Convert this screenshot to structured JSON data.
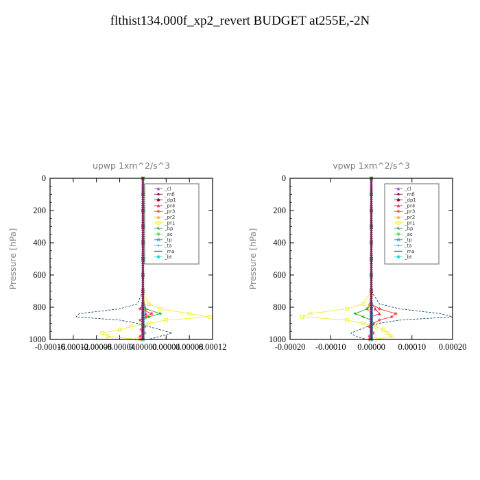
{
  "title": "flthist134.000f_xp2_revert  BUDGET at255E,-2N",
  "colors": {
    "_cl": "#9955cc",
    "_mfl": "#7a1f5c",
    "_dp1": "#8b1a4a",
    "_pr4": "#dd3355",
    "_pr3": "#ff3333",
    "_pr2": "#ffaa22",
    "_pr1": "#eeee22",
    "_bp": "#22aa22",
    "_ac": "#66dd66",
    "_tp": "#2277bb",
    "_ta": "#3399dd",
    "_ma": "#114466",
    "_bt": "#22dddd"
  },
  "chart_data": [
    {
      "type": "line",
      "title": "upwp   1xm^2/s^3",
      "ylabel": "Pressure [hPa]",
      "xlim": [
        -0.00016,
        0.00012
      ],
      "ylim": [
        1000,
        0
      ],
      "xticks": [
        "-0.00016",
        "-0.00012",
        "-0.00008",
        "-0.00004",
        "0.00000",
        "0.00004",
        "0.00008",
        "0.00012"
      ],
      "yticks": [
        "0",
        "200",
        "400",
        "600",
        "800",
        "1000"
      ],
      "legend_loc": "upper-right",
      "pressure": [
        0,
        100,
        200,
        300,
        400,
        500,
        600,
        700,
        780,
        810,
        840,
        860,
        880,
        900,
        920,
        940,
        960,
        980,
        1000
      ],
      "series": [
        {
          "name": "_cl",
          "values": [
            0,
            0,
            0,
            0,
            0,
            0,
            0,
            0,
            0,
            0,
            0,
            0,
            0,
            0,
            0,
            0,
            0,
            0,
            0
          ]
        },
        {
          "name": "_mfl",
          "values": [
            0,
            0,
            0,
            0,
            0,
            0,
            0,
            0,
            0,
            0,
            0,
            0,
            0,
            0,
            0,
            0,
            0,
            0,
            0
          ]
        },
        {
          "name": "_dp1",
          "values": [
            0,
            0,
            0,
            0,
            0,
            0,
            0,
            0,
            0,
            0,
            0,
            0,
            0,
            0,
            0,
            0,
            0,
            0,
            0
          ]
        },
        {
          "name": "_pr4",
          "values": [
            0,
            0,
            0,
            0,
            0,
            0,
            0,
            0,
            0,
            5e-06,
            5e-06,
            0,
            0,
            0,
            0,
            0,
            0,
            0,
            0
          ]
        },
        {
          "name": "_pr3",
          "values": [
            0,
            0,
            0,
            0,
            0,
            0,
            0,
            0,
            0,
            -5e-06,
            1.5e-05,
            5e-06,
            -5e-06,
            0,
            3e-06,
            -3e-06,
            3e-06,
            -5e-06,
            -5e-06
          ]
        },
        {
          "name": "_pr2",
          "values": [
            0,
            0,
            0,
            0,
            0,
            0,
            0,
            0,
            3e-06,
            5e-06,
            0,
            0,
            0,
            0,
            0,
            0,
            0,
            0,
            0
          ]
        },
        {
          "name": "_pr1",
          "values": [
            0,
            0,
            0,
            0,
            0,
            0,
            0,
            0,
            1e-05,
            3e-05,
            8e-05,
            0.000115,
            4e-05,
            1e-05,
            -2e-05,
            -4e-05,
            -7e-05,
            -6e-05,
            -1e-05
          ]
        },
        {
          "name": "_bp",
          "values": [
            0,
            0,
            0,
            0,
            0,
            0,
            0,
            0,
            0,
            5e-06,
            3e-05,
            1e-05,
            0,
            0,
            0,
            0,
            0,
            0,
            0
          ]
        },
        {
          "name": "_ac",
          "values": [
            0,
            0,
            0,
            0,
            0,
            0,
            0,
            0,
            0,
            0,
            0,
            0,
            0,
            0,
            0,
            0,
            0,
            0,
            0
          ]
        },
        {
          "name": "_tp",
          "values": [
            0,
            0,
            0,
            0,
            0,
            0,
            0,
            0,
            0,
            0,
            0,
            0,
            0,
            0,
            0,
            0,
            0,
            0,
            0
          ]
        },
        {
          "name": "_ta",
          "values": [
            0,
            0,
            0,
            0,
            0,
            0,
            0,
            0,
            0,
            0,
            0,
            0,
            0,
            0,
            0,
            0,
            0,
            0,
            0
          ]
        },
        {
          "name": "_ma",
          "values": [
            0,
            0,
            0,
            0,
            0,
            0,
            0,
            0,
            -1e-05,
            -4e-05,
            -0.00011,
            -0.000115,
            -4e-05,
            -1e-05,
            1e-05,
            3e-05,
            5e-05,
            3e-05,
            1e-05
          ]
        },
        {
          "name": "_bt",
          "values": [
            0,
            0,
            0,
            0,
            0,
            0,
            0,
            0,
            0,
            0,
            0,
            0,
            0,
            0,
            0,
            0,
            0,
            0,
            0
          ]
        }
      ]
    },
    {
      "type": "line",
      "title": "vpwp   1xm^2/s^3",
      "ylabel": "Pressure [hPa]",
      "xlim": [
        -0.0002,
        0.0002
      ],
      "ylim": [
        1000,
        0
      ],
      "xticks": [
        "-0.00020",
        "-0.00010",
        "0.00000",
        "0.00010",
        "0.00020"
      ],
      "yticks": [
        "0",
        "200",
        "400",
        "600",
        "800",
        "1000"
      ],
      "legend_loc": "upper-right",
      "pressure": [
        0,
        100,
        200,
        300,
        400,
        500,
        600,
        700,
        780,
        810,
        840,
        860,
        880,
        900,
        920,
        940,
        960,
        980,
        1000
      ],
      "series": [
        {
          "name": "_cl",
          "values": [
            0,
            0,
            0,
            0,
            0,
            0,
            0,
            0,
            0,
            0,
            0,
            0,
            0,
            0,
            0,
            0,
            0,
            0,
            0
          ]
        },
        {
          "name": "_mfl",
          "values": [
            0,
            0,
            0,
            0,
            0,
            0,
            0,
            0,
            0,
            0,
            0,
            0,
            0,
            0,
            0,
            0,
            0,
            0,
            0
          ]
        },
        {
          "name": "_dp1",
          "values": [
            0,
            0,
            0,
            0,
            0,
            0,
            0,
            0,
            0,
            0,
            0,
            0,
            0,
            0,
            0,
            0,
            0,
            0,
            0
          ]
        },
        {
          "name": "_pr4",
          "values": [
            0,
            0,
            0,
            0,
            0,
            0,
            0,
            0,
            0,
            1e-05,
            2e-05,
            0,
            0,
            0,
            0,
            0,
            0,
            0,
            0
          ]
        },
        {
          "name": "_pr3",
          "values": [
            0,
            0,
            0,
            0,
            0,
            0,
            0,
            0,
            0,
            2e-05,
            6e-05,
            5e-05,
            2e-05,
            5e-06,
            -5e-06,
            0,
            5e-06,
            -5e-06,
            -5e-06
          ]
        },
        {
          "name": "_pr2",
          "values": [
            0,
            0,
            0,
            0,
            0,
            0,
            0,
            0,
            -5e-06,
            -1e-05,
            0,
            0,
            0,
            0,
            0,
            0,
            0,
            0,
            0
          ]
        },
        {
          "name": "_pr1",
          "values": [
            0,
            0,
            0,
            0,
            0,
            0,
            0,
            0,
            -2e-05,
            -6e-05,
            -0.00015,
            -0.00017,
            -6e-05,
            -2e-05,
            1e-05,
            3e-05,
            4e-05,
            5e-05,
            1e-05
          ]
        },
        {
          "name": "_bp",
          "values": [
            0,
            0,
            0,
            0,
            0,
            0,
            0,
            0,
            0,
            -1e-05,
            -4e-05,
            -2e-05,
            0,
            0,
            0,
            0,
            0,
            0,
            0
          ]
        },
        {
          "name": "_ac",
          "values": [
            0,
            0,
            0,
            0,
            0,
            0,
            0,
            0,
            0,
            0,
            0,
            0,
            0,
            0,
            0,
            0,
            0,
            0,
            0
          ]
        },
        {
          "name": "_tp",
          "values": [
            0,
            0,
            0,
            0,
            0,
            0,
            0,
            0,
            0,
            0,
            0,
            0,
            0,
            0,
            0,
            0,
            0,
            0,
            0
          ]
        },
        {
          "name": "_ta",
          "values": [
            0,
            0,
            0,
            0,
            0,
            0,
            0,
            0,
            0,
            0,
            0,
            0,
            0,
            0,
            0,
            0,
            0,
            0,
            0
          ]
        },
        {
          "name": "_ma",
          "values": [
            0,
            0,
            0,
            0,
            0,
            0,
            0,
            0,
            2e-05,
            7e-05,
            0.00017,
            0.0002,
            7e-05,
            2e-05,
            -1e-05,
            -3e-05,
            -5e-05,
            -4e-05,
            -1e-05
          ]
        },
        {
          "name": "_bt",
          "values": [
            0,
            0,
            0,
            0,
            0,
            0,
            0,
            0,
            0,
            0,
            0,
            0,
            0,
            0,
            0,
            0,
            0,
            0,
            0
          ]
        }
      ]
    }
  ]
}
